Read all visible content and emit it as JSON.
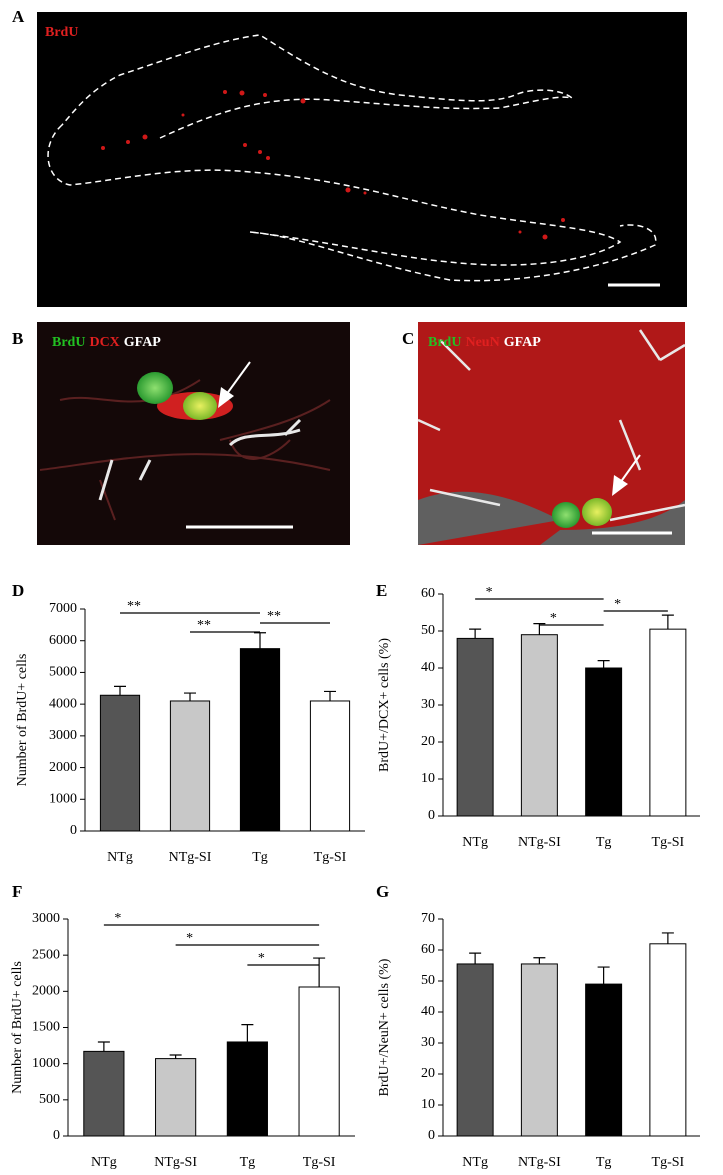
{
  "images": [
    {
      "letter": "A",
      "markers": [
        {
          "text": "BrdU",
          "color": "#e02020"
        }
      ]
    },
    {
      "letter": "B",
      "markers": [
        {
          "text": "BrdU",
          "color": "#22c022"
        },
        {
          "text": "DCX",
          "color": "#e02020"
        },
        {
          "text": "GFAP",
          "color": "#ffffff"
        }
      ]
    },
    {
      "letter": "C",
      "markers": [
        {
          "text": "BrdU",
          "color": "#22c022"
        },
        {
          "text": "NeuN",
          "color": "#e02020"
        },
        {
          "text": "GFAP",
          "color": "#ffffff"
        }
      ]
    }
  ],
  "chart_data": [
    {
      "type": "bar",
      "panel": "D",
      "ylabel": "Number of BrdU+ cells",
      "categories": [
        "NTg",
        "NTg-SI",
        "Tg",
        "Tg-SI"
      ],
      "values": [
        4280,
        4100,
        5750,
        4100
      ],
      "errors": [
        280,
        250,
        500,
        300
      ],
      "colors": [
        "#555555",
        "#c8c8c8",
        "#000000",
        "#ffffff"
      ],
      "ylim": [
        0,
        7000
      ],
      "yticks": [
        0,
        1000,
        2000,
        3000,
        4000,
        5000,
        6000,
        7000
      ],
      "comparisons": [
        {
          "label": "**",
          "between": [
            "NTg",
            "Tg"
          ]
        },
        {
          "label": "**",
          "between": [
            "NTg-SI",
            "Tg"
          ]
        },
        {
          "label": "**",
          "between": [
            "Tg",
            "Tg-SI"
          ]
        }
      ]
    },
    {
      "type": "bar",
      "panel": "E",
      "ylabel": "BrdU+/DCX+ cells (%)",
      "categories": [
        "NTg",
        "NTg-SI",
        "Tg",
        "Tg-SI"
      ],
      "values": [
        48,
        49,
        40,
        50.5
      ],
      "errors": [
        2.5,
        3,
        2,
        3.8
      ],
      "colors": [
        "#555555",
        "#c8c8c8",
        "#000000",
        "#ffffff"
      ],
      "ylim": [
        0,
        60
      ],
      "yticks": [
        0,
        10,
        20,
        30,
        40,
        50,
        60
      ],
      "comparisons": [
        {
          "label": "*",
          "between": [
            "NTg",
            "Tg"
          ]
        },
        {
          "label": "*",
          "between": [
            "NTg-SI",
            "Tg"
          ]
        },
        {
          "label": "*",
          "between": [
            "Tg",
            "Tg-SI"
          ]
        }
      ]
    },
    {
      "type": "bar",
      "panel": "F",
      "ylabel": "Number of BrdU+ cells",
      "categories": [
        "NTg",
        "NTg-SI",
        "Tg",
        "Tg-SI"
      ],
      "values": [
        1170,
        1070,
        1300,
        2060
      ],
      "errors": [
        130,
        50,
        240,
        400
      ],
      "colors": [
        "#555555",
        "#c8c8c8",
        "#000000",
        "#ffffff"
      ],
      "ylim": [
        0,
        3000
      ],
      "yticks": [
        0,
        500,
        1000,
        1500,
        2000,
        2500,
        3000
      ],
      "comparisons": [
        {
          "label": "*",
          "between": [
            "NTg",
            "Tg-SI"
          ]
        },
        {
          "label": "*",
          "between": [
            "NTg-SI",
            "Tg-SI"
          ]
        },
        {
          "label": "*",
          "between": [
            "Tg",
            "Tg-SI"
          ]
        }
      ]
    },
    {
      "type": "bar",
      "panel": "G",
      "ylabel": "BrdU+/NeuN+ cells (%)",
      "categories": [
        "NTg",
        "NTg-SI",
        "Tg",
        "Tg-SI"
      ],
      "values": [
        55.5,
        55.5,
        49,
        62
      ],
      "errors": [
        3.5,
        2,
        5.5,
        3.5
      ],
      "colors": [
        "#555555",
        "#c8c8c8",
        "#000000",
        "#ffffff"
      ],
      "ylim": [
        0,
        70
      ],
      "yticks": [
        0,
        10,
        20,
        30,
        40,
        50,
        60,
        70
      ],
      "comparisons": []
    }
  ]
}
